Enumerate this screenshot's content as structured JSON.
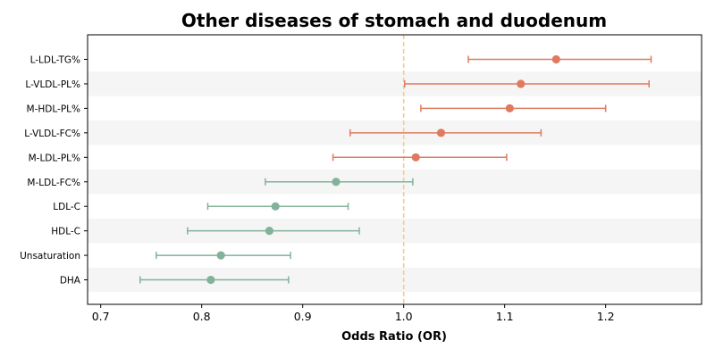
{
  "chart_data": {
    "type": "forest",
    "title": "Other diseases of stomach and duodenum",
    "xlabel": "Odds Ratio (OR)",
    "xlim": [
      0.687,
      1.295
    ],
    "xticks": [
      "0.7",
      "0.8",
      "0.9",
      "1.0",
      "1.1",
      "1.2"
    ],
    "reference_line": 1.0,
    "categories": [
      "L-LDL-TG%",
      "L-VLDL-PL%",
      "M-HDL-PL%",
      "L-VLDL-FC%",
      "M-LDL-PL%",
      "M-LDL-FC%",
      "LDL-C",
      "HDL-C",
      "Unsaturation",
      "DHA"
    ],
    "or": [
      1.151,
      1.116,
      1.105,
      1.037,
      1.012,
      0.933,
      0.873,
      0.867,
      0.819,
      0.809
    ],
    "ci_low": [
      1.064,
      1.001,
      1.017,
      0.947,
      0.93,
      0.863,
      0.806,
      0.786,
      0.755,
      0.739
    ],
    "ci_high": [
      1.245,
      1.243,
      1.2,
      1.136,
      1.102,
      1.009,
      0.945,
      0.956,
      0.888,
      0.886
    ],
    "grid": false,
    "colors": {
      "positive": "#e07a5f",
      "negative": "#81b29a",
      "reference": "#f2cc8f",
      "band": "#f5f5f5",
      "axis": "#000000"
    }
  }
}
